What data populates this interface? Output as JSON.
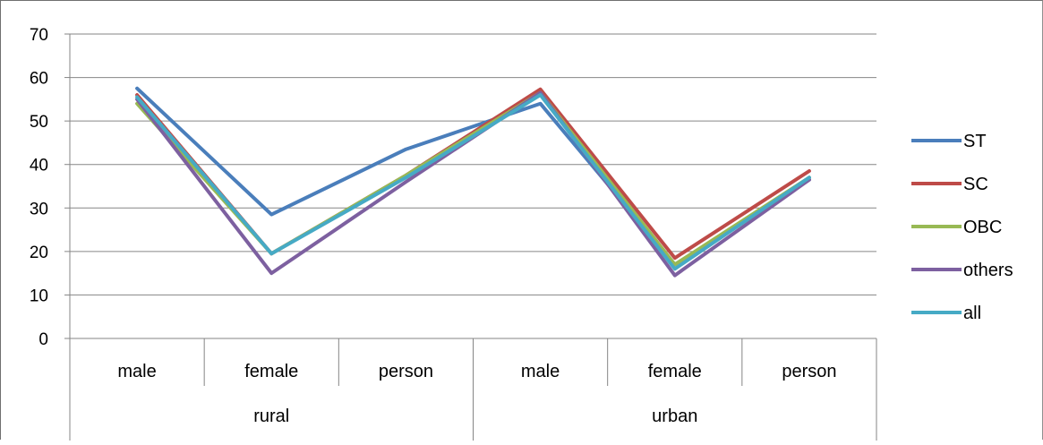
{
  "chart_data": {
    "type": "line",
    "categories": [
      "male",
      "female",
      "person",
      "male",
      "female",
      "person"
    ],
    "groups": [
      {
        "label": "rural",
        "span": [
          0,
          2
        ]
      },
      {
        "label": "urban",
        "span": [
          3,
          5
        ]
      }
    ],
    "ylim": [
      0,
      70
    ],
    "yticks": [
      0,
      10,
      20,
      30,
      40,
      50,
      60,
      70
    ],
    "grid": true,
    "legend": "right",
    "series": [
      {
        "name": "ST",
        "color": "#4a7ebb",
        "values": [
          57.5,
          28.5,
          43.5,
          54.0,
          17.0,
          36.5
        ]
      },
      {
        "name": "SC",
        "color": "#be4b48",
        "values": [
          56.0,
          19.5,
          37.5,
          57.3,
          18.5,
          38.5
        ]
      },
      {
        "name": "OBC",
        "color": "#98b954",
        "values": [
          54.0,
          19.5,
          37.5,
          56.5,
          17.0,
          37.0
        ]
      },
      {
        "name": "others",
        "color": "#7d60a0",
        "values": [
          55.0,
          15.0,
          36.0,
          56.5,
          14.5,
          36.5
        ]
      },
      {
        "name": "all",
        "color": "#46aac5",
        "values": [
          55.5,
          19.5,
          37.0,
          56.0,
          16.0,
          37.0
        ]
      }
    ]
  }
}
